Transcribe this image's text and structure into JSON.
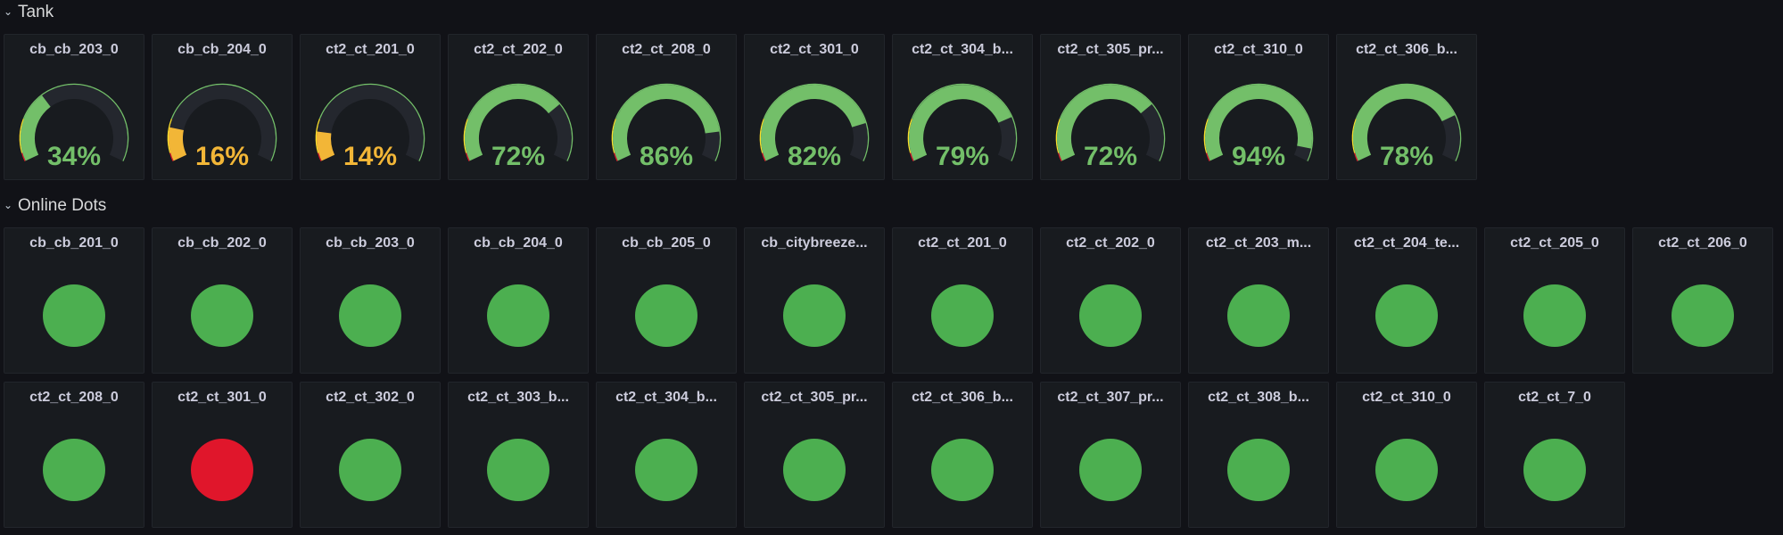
{
  "colors": {
    "background": "#111217",
    "panel": "#181b1f",
    "green": "#73bf69",
    "dot_green": "#4caf50",
    "orange": "#fade2a",
    "yellow": "#f2b637",
    "red": "#e0162b",
    "track": "#24272e"
  },
  "rows": [
    {
      "title": "Tank",
      "collapse_icon": "chevron-down-icon"
    },
    {
      "title": "Online Dots",
      "collapse_icon": "chevron-down-icon"
    }
  ],
  "tank": [
    {
      "title": "cb_cb_203_0",
      "value": 34,
      "unit": "%",
      "status": "green"
    },
    {
      "title": "cb_cb_204_0",
      "value": 16,
      "unit": "%",
      "status": "yellow"
    },
    {
      "title": "ct2_ct_201_0",
      "value": 14,
      "unit": "%",
      "status": "yellow"
    },
    {
      "title": "ct2_ct_202_0",
      "value": 72,
      "unit": "%",
      "status": "green"
    },
    {
      "title": "ct2_ct_208_0",
      "value": 86,
      "unit": "%",
      "status": "green"
    },
    {
      "title": "ct2_ct_301_0",
      "value": 82,
      "unit": "%",
      "status": "green"
    },
    {
      "title": "ct2_ct_304_b...",
      "value": 79,
      "unit": "%",
      "status": "green"
    },
    {
      "title": "ct2_ct_305_pr...",
      "value": 72,
      "unit": "%",
      "status": "green"
    },
    {
      "title": "ct2_ct_310_0",
      "value": 94,
      "unit": "%",
      "status": "green"
    },
    {
      "title": "ct2_ct_306_b...",
      "value": 78,
      "unit": "%",
      "status": "green"
    }
  ],
  "online_dots": [
    {
      "title": "cb_cb_201_0",
      "status": "green"
    },
    {
      "title": "cb_cb_202_0",
      "status": "green"
    },
    {
      "title": "cb_cb_203_0",
      "status": "green"
    },
    {
      "title": "cb_cb_204_0",
      "status": "green"
    },
    {
      "title": "cb_cb_205_0",
      "status": "green"
    },
    {
      "title": "cb_citybreeze...",
      "status": "green"
    },
    {
      "title": "ct2_ct_201_0",
      "status": "green"
    },
    {
      "title": "ct2_ct_202_0",
      "status": "green"
    },
    {
      "title": "ct2_ct_203_m...",
      "status": "green"
    },
    {
      "title": "ct2_ct_204_te...",
      "status": "green"
    },
    {
      "title": "ct2_ct_205_0",
      "status": "green"
    },
    {
      "title": "ct2_ct_206_0",
      "status": "green"
    },
    {
      "title": "ct2_ct_208_0",
      "status": "green"
    },
    {
      "title": "ct2_ct_301_0",
      "status": "red"
    },
    {
      "title": "ct2_ct_302_0",
      "status": "green"
    },
    {
      "title": "ct2_ct_303_b...",
      "status": "green"
    },
    {
      "title": "ct2_ct_304_b...",
      "status": "green"
    },
    {
      "title": "ct2_ct_305_pr...",
      "status": "green"
    },
    {
      "title": "ct2_ct_306_b...",
      "status": "green"
    },
    {
      "title": "ct2_ct_307_pr...",
      "status": "green"
    },
    {
      "title": "ct2_ct_308_b...",
      "status": "green"
    },
    {
      "title": "ct2_ct_310_0",
      "status": "green"
    },
    {
      "title": "ct2_ct_7_0",
      "status": "green"
    }
  ]
}
